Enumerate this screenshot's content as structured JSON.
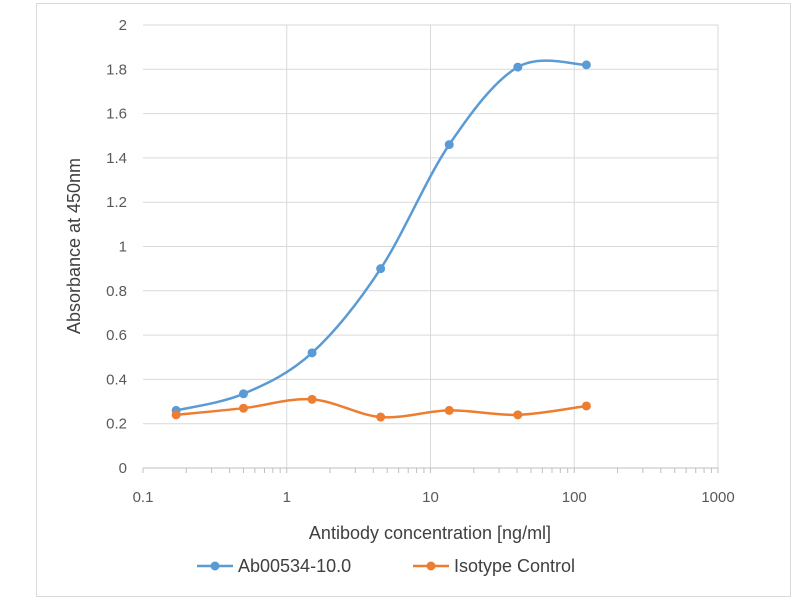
{
  "chart_data": {
    "type": "line",
    "title": "",
    "xlabel": "Antibody concentration  [ng/ml]",
    "ylabel": "Absorbance at 450nm",
    "xscale": "log",
    "xlim": [
      0.1,
      1000
    ],
    "ylim": [
      0,
      2
    ],
    "x_ticks": [
      0.1,
      1,
      10,
      100,
      1000
    ],
    "x_tick_labels": [
      "0.1",
      "1",
      "10",
      "100",
      "1000"
    ],
    "y_ticks": [
      0,
      0.2,
      0.4,
      0.6,
      0.8,
      1,
      1.2,
      1.4,
      1.6,
      1.8,
      2
    ],
    "y_tick_labels": [
      "0",
      "0.2",
      "0.4",
      "0.6",
      "0.8",
      "1",
      "1.2",
      "1.4",
      "1.6",
      "1.8",
      "2"
    ],
    "grid": true,
    "legend_position": "bottom",
    "x": [
      0.17,
      0.5,
      1.5,
      4.5,
      13.5,
      40.5,
      121.5
    ],
    "series": [
      {
        "name": "Ab00534-10.0",
        "color": "#5B9BD5",
        "values": [
          0.26,
          0.335,
          0.52,
          0.9,
          1.46,
          1.81,
          1.82
        ]
      },
      {
        "name": "Isotype Control",
        "color": "#ED7D31",
        "values": [
          0.24,
          0.27,
          0.31,
          0.23,
          0.26,
          0.24,
          0.28
        ]
      }
    ]
  }
}
